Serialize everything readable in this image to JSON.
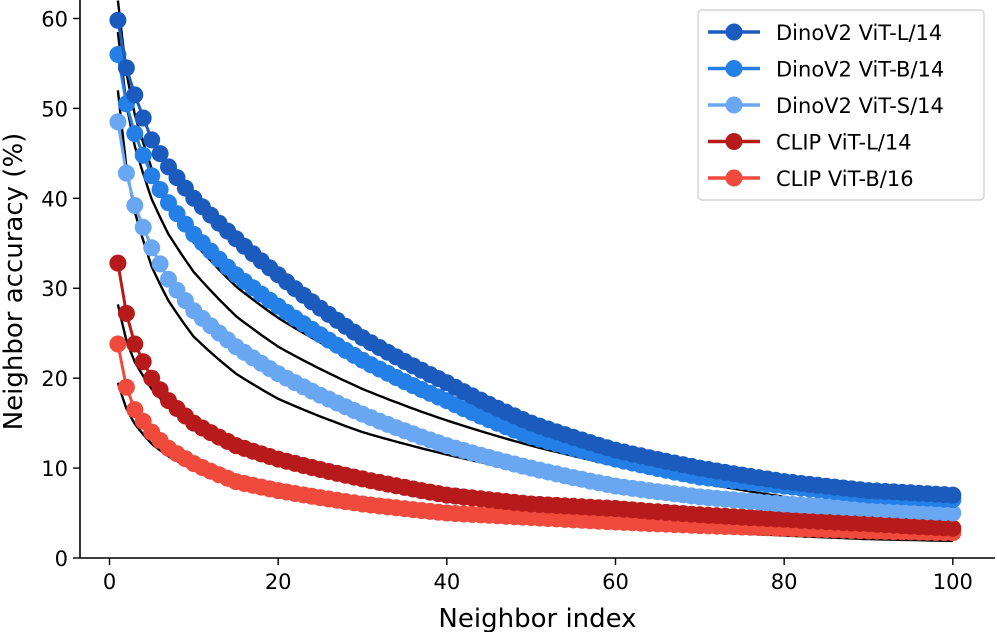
{
  "chart_data": {
    "type": "scatter",
    "title": "",
    "xlabel": "Neighbor index",
    "ylabel": "Neighbor accuracy (%)",
    "xlim": [
      -3.5,
      105
    ],
    "ylim": [
      0,
      61.5
    ],
    "x_ticks": [
      0,
      20,
      40,
      60,
      80,
      100
    ],
    "y_ticks": [
      0,
      10,
      20,
      30,
      40,
      50,
      60
    ],
    "x_tick_labels": [
      "0",
      "20",
      "40",
      "60",
      "80",
      "100"
    ],
    "y_tick_labels": [
      "0",
      "10",
      "20",
      "30",
      "40",
      "50",
      "60"
    ],
    "legend_position": "top-right",
    "fit_color": "#000000",
    "x": [
      1,
      2,
      3,
      5,
      7,
      10,
      15,
      20,
      30,
      40,
      50,
      60,
      70,
      80,
      90,
      100
    ],
    "series": [
      {
        "name": "DinoV2 ViT-L/14",
        "color": "#1a5bbd",
        "values": [
          59.8,
          54.5,
          51.5,
          46.5,
          43.5,
          40.0,
          35.5,
          31.5,
          24.5,
          19.5,
          15.0,
          12.0,
          10.0,
          8.5,
          7.5,
          7.0
        ],
        "fit": [
          62.0,
          54.0,
          49.3,
          43.3,
          39.4,
          35.1,
          30.2,
          26.7,
          21.5,
          17.6,
          14.5,
          12.0,
          9.8,
          7.9,
          6.3,
          5.5
        ]
      },
      {
        "name": "DinoV2 ViT-B/14",
        "color": "#2480e6",
        "values": [
          56.0,
          50.5,
          47.2,
          42.5,
          39.5,
          36.0,
          31.5,
          28.0,
          22.0,
          17.5,
          13.5,
          11.0,
          9.0,
          8.0,
          7.0,
          6.5
        ],
        "fit": [
          58.5,
          50.5,
          45.8,
          39.9,
          36.0,
          31.8,
          26.9,
          23.5,
          18.8,
          15.3,
          12.5,
          10.3,
          8.4,
          6.8,
          5.4,
          4.5
        ]
      },
      {
        "name": "DinoV2 ViT-S/14",
        "color": "#6aa7f2",
        "values": [
          48.5,
          42.8,
          39.2,
          34.5,
          31.0,
          27.5,
          23.5,
          20.5,
          16.0,
          12.5,
          10.0,
          8.0,
          6.8,
          6.0,
          5.5,
          5.0
        ],
        "fit": [
          52.0,
          43.5,
          38.5,
          32.4,
          28.6,
          24.6,
          20.5,
          17.7,
          14.0,
          11.5,
          9.5,
          7.9,
          6.6,
          5.5,
          4.6,
          4.1
        ]
      },
      {
        "name": "CLIP ViT-L/14",
        "color": "#b71a1a",
        "values": [
          32.8,
          27.2,
          23.8,
          20.0,
          17.5,
          15.0,
          12.5,
          11.0,
          8.8,
          7.0,
          6.0,
          5.5,
          4.8,
          4.3,
          3.8,
          3.3
        ],
        "fit": [
          28.2,
          24.2,
          21.8,
          18.8,
          16.8,
          14.7,
          12.5,
          10.9,
          8.8,
          7.4,
          6.2,
          5.2,
          4.3,
          3.5,
          2.9,
          2.5
        ]
      },
      {
        "name": "CLIP ViT-B/16",
        "color": "#ef4a3c",
        "values": [
          23.8,
          19.0,
          16.5,
          14.0,
          12.2,
          10.5,
          8.5,
          7.5,
          6.0,
          5.0,
          4.5,
          4.0,
          3.6,
          3.3,
          3.0,
          2.8
        ],
        "fit": [
          19.5,
          16.6,
          14.9,
          12.7,
          11.3,
          9.8,
          8.2,
          7.2,
          5.8,
          4.9,
          4.1,
          3.5,
          3.0,
          2.5,
          2.1,
          1.9
        ]
      }
    ]
  }
}
